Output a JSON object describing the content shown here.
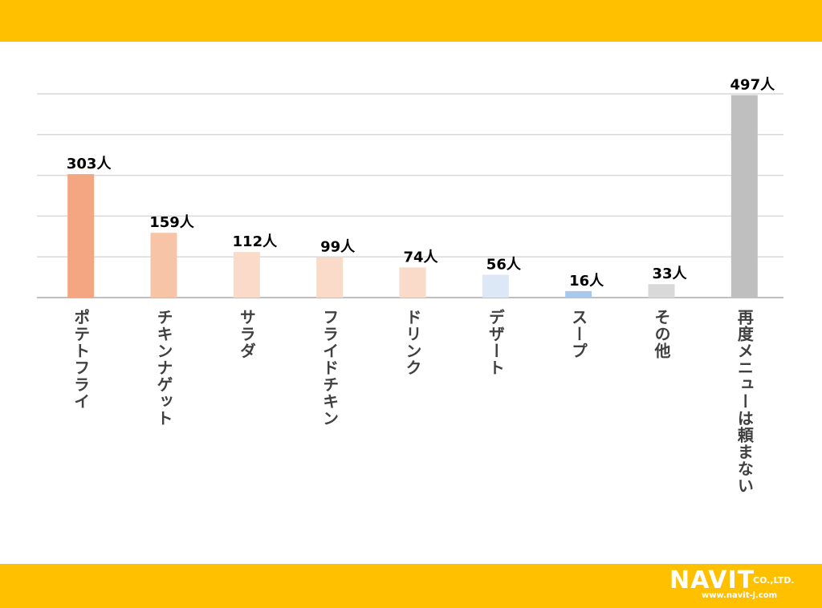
{
  "chart_data": {
    "type": "bar",
    "title": "",
    "xlabel": "",
    "ylabel": "",
    "ylim": [
      0,
      500
    ],
    "grid": true,
    "value_suffix": "人",
    "categories": [
      "ポテトフライ",
      "チキンナゲット",
      "サラダ",
      "フライドチキン",
      "ドリンク",
      "デザート",
      "スープ",
      "その他",
      "再度メニューは頼まない"
    ],
    "values": [
      303,
      159,
      112,
      99,
      74,
      56,
      16,
      33,
      497
    ],
    "data_labels": [
      "303人",
      "159人",
      "112人",
      "99人",
      "74人",
      "56人",
      "16人",
      "33人",
      "497人"
    ],
    "bar_colors": [
      "#F4A582",
      "#F7C4A8",
      "#FADBC9",
      "#FADBC9",
      "#FADBC9",
      "#DCE8F5",
      "#A9C8EB",
      "#D9D9D9",
      "#BFBFBF"
    ]
  },
  "logo": {
    "name": "NAVIT",
    "suffix": "CO.,LTD.",
    "url": "www.navit-j.com"
  }
}
